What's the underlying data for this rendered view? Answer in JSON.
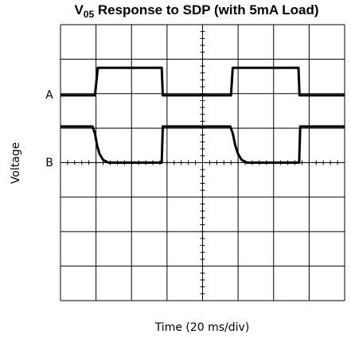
{
  "chart_data": {
    "type": "line",
    "title": {
      "main": "V",
      "sub": "05",
      "rest": " Response to SDP (with 5mA Load)"
    },
    "xlabel": "Time (20 ms/div)",
    "ylabel": "Voltage",
    "xlim": [
      0,
      8
    ],
    "ylim": [
      0,
      8
    ],
    "xticks": [
      0,
      1,
      2,
      3,
      4,
      5,
      6,
      7,
      8
    ],
    "yticks": [
      0,
      1,
      2,
      3,
      4,
      5,
      6,
      7,
      8
    ],
    "grid": true,
    "series": [
      {
        "name": "A",
        "color": "#000000",
        "x": [
          0,
          0.97,
          1.05,
          2.85,
          2.88,
          4.8,
          4.85,
          6.7,
          6.73,
          8
        ],
        "values": [
          5.95,
          5.95,
          6.75,
          6.75,
          5.95,
          5.95,
          6.75,
          6.75,
          5.95,
          5.95
        ]
      },
      {
        "name": "B",
        "color": "#000000",
        "x": [
          0,
          0.9,
          0.97,
          1.03,
          1.1,
          1.2,
          1.35,
          2.85,
          2.88,
          4.78,
          4.85,
          4.92,
          5.0,
          5.1,
          5.25,
          6.72,
          6.75,
          8
        ],
        "values": [
          5.05,
          5.05,
          4.85,
          4.5,
          4.25,
          4.08,
          4.0,
          4.0,
          5.05,
          5.05,
          4.85,
          4.5,
          4.25,
          4.08,
          4.0,
          4.0,
          5.05,
          5.05
        ]
      }
    ]
  }
}
